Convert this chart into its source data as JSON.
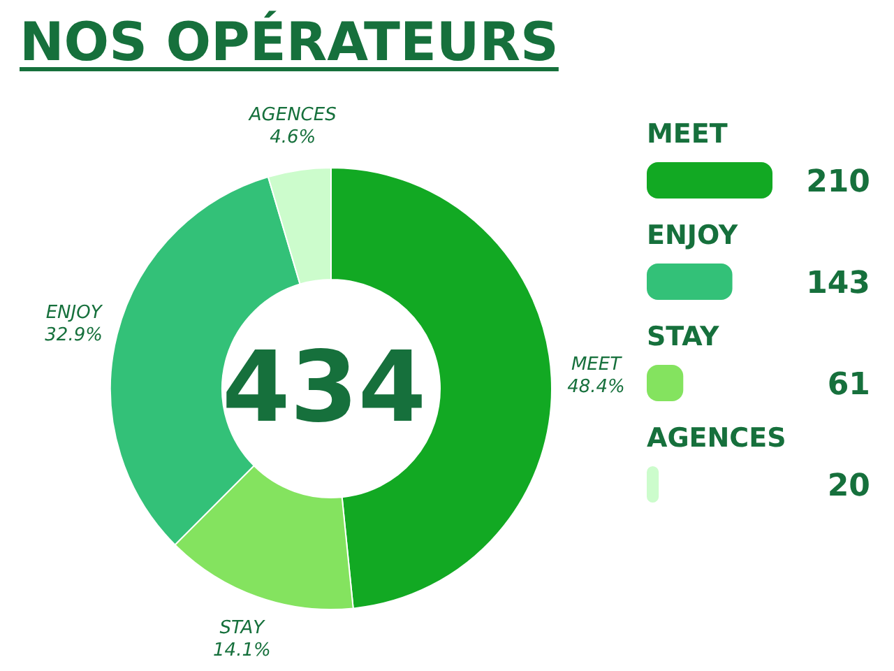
{
  "chart_data": [
    {
      "type": "donut",
      "title": "NOS OPÉRATEURS",
      "categories": [
        "MEET",
        "STAY",
        "ENJOY",
        "AGENCES"
      ],
      "values": [
        48.4,
        14.1,
        32.9,
        4.6
      ],
      "colors": [
        "#12a923",
        "#84e35f",
        "#33c178",
        "#ccfccc"
      ],
      "value_labels": [
        "48.4%",
        "14.1%",
        "32.9%",
        "4.6%"
      ],
      "annotations": [
        "434"
      ]
    },
    {
      "type": "bar",
      "orientation": "horizontal",
      "categories": [
        "MEET",
        "ENJOY",
        "STAY",
        "AGENCES"
      ],
      "values": [
        210,
        143,
        61,
        20
      ],
      "colors": [
        "#12a923",
        "#33c178",
        "#84e35f",
        "#ccfccc"
      ],
      "data_labels": true
    }
  ]
}
